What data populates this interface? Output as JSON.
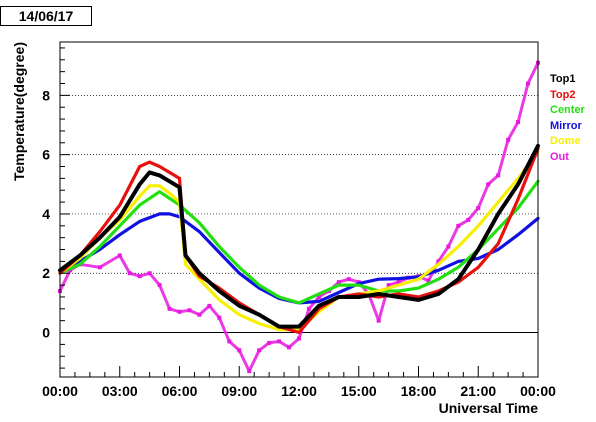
{
  "date": "14/06/17",
  "colors": {
    "Top1": "#000000",
    "Top2": "#e8100c",
    "Center": "#22e010",
    "Mirror": "#1010e0",
    "Dome": "#f8f000",
    "Out": "#e818e0"
  },
  "chart_data": {
    "type": "scatter",
    "xlabel": "Universal Time",
    "ylabel": "Temperature(degree)",
    "x_unit": "hours",
    "xlim": [
      0,
      24
    ],
    "ylim": [
      -1.5,
      9.8
    ],
    "x_ticks": [
      "00:00",
      "03:00",
      "06:00",
      "09:00",
      "12:00",
      "15:00",
      "18:00",
      "21:00",
      "00:00"
    ],
    "y_ticks": [
      0,
      2,
      4,
      6,
      8
    ],
    "grid": "horizontal dotted at 2, 4, 6, 8",
    "legend_position": "right",
    "series": [
      {
        "name": "Top1",
        "x": [
          0,
          1,
          2,
          3,
          4,
          4.5,
          5,
          5.5,
          6,
          6.3,
          7,
          8,
          9,
          10,
          11,
          12,
          13,
          14,
          15,
          16,
          17,
          18,
          19,
          20,
          21,
          22,
          23,
          24
        ],
        "y": [
          2.1,
          2.6,
          3.2,
          3.9,
          5.0,
          5.4,
          5.3,
          5.1,
          4.9,
          2.6,
          2.0,
          1.4,
          0.9,
          0.6,
          0.2,
          0.2,
          0.9,
          1.2,
          1.2,
          1.3,
          1.2,
          1.1,
          1.3,
          1.8,
          2.8,
          4.0,
          5.0,
          6.3
        ]
      },
      {
        "name": "Top2",
        "x": [
          0,
          1,
          2,
          3,
          4,
          4.5,
          5,
          5.5,
          6,
          6.3,
          7,
          8,
          9,
          10,
          11,
          12,
          13,
          14,
          15,
          16,
          17,
          18,
          19,
          20,
          21,
          22,
          23,
          24
        ],
        "y": [
          2.0,
          2.6,
          3.4,
          4.3,
          5.6,
          5.75,
          5.6,
          5.4,
          5.2,
          2.6,
          1.9,
          1.5,
          1.0,
          0.6,
          0.2,
          0.0,
          0.8,
          1.2,
          1.3,
          1.2,
          1.3,
          1.2,
          1.4,
          1.7,
          2.2,
          3.0,
          4.5,
          6.2
        ]
      },
      {
        "name": "Center",
        "x": [
          0,
          1,
          2,
          3,
          4,
          5,
          6,
          7,
          8,
          9,
          10,
          11,
          12,
          13,
          14,
          15,
          16,
          17,
          18,
          19,
          20,
          21,
          22,
          23,
          24
        ],
        "y": [
          2.0,
          2.3,
          2.9,
          3.6,
          4.3,
          4.75,
          4.3,
          3.7,
          2.9,
          2.2,
          1.6,
          1.2,
          1.0,
          1.3,
          1.6,
          1.6,
          1.4,
          1.4,
          1.5,
          1.8,
          2.2,
          2.8,
          3.5,
          4.2,
          5.1
        ]
      },
      {
        "name": "Mirror",
        "x": [
          0,
          1,
          2,
          3,
          4,
          5,
          5.5,
          6,
          7,
          8,
          9,
          10,
          11,
          12,
          13,
          14,
          15,
          16,
          17,
          18,
          19,
          20,
          21,
          22,
          23,
          24
        ],
        "y": [
          2.1,
          2.4,
          2.8,
          3.3,
          3.75,
          4.0,
          4.0,
          3.9,
          3.4,
          2.7,
          2.0,
          1.5,
          1.15,
          1.0,
          1.05,
          1.35,
          1.65,
          1.8,
          1.82,
          1.88,
          2.1,
          2.4,
          2.5,
          2.8,
          3.3,
          3.85
        ]
      },
      {
        "name": "Dome",
        "x": [
          0,
          1,
          2,
          3,
          4,
          4.5,
          5,
          5.5,
          6,
          6.3,
          7,
          8,
          9,
          10,
          11,
          12,
          13,
          14,
          15,
          16,
          17,
          18,
          19,
          20,
          21,
          22,
          23,
          24
        ],
        "y": [
          2.0,
          2.5,
          3.2,
          3.8,
          4.6,
          4.95,
          4.95,
          4.7,
          4.4,
          2.3,
          1.8,
          1.1,
          0.6,
          0.3,
          0.1,
          0.1,
          0.7,
          1.2,
          1.3,
          1.4,
          1.6,
          1.8,
          2.3,
          2.9,
          3.6,
          4.4,
          5.2,
          6.1
        ]
      },
      {
        "name": "Out",
        "x": [
          0,
          0.5,
          1,
          2,
          3,
          3.5,
          4,
          4.5,
          5,
          5.5,
          6,
          6.5,
          7,
          7.5,
          8,
          8.5,
          9,
          9.5,
          10,
          10.5,
          11,
          11.5,
          12,
          12.5,
          13,
          13.5,
          14,
          14.5,
          15,
          15.5,
          16,
          16.5,
          17,
          17.5,
          18,
          18.5,
          19,
          19.5,
          20,
          20.5,
          21,
          21.5,
          22,
          22.5,
          23,
          23.5,
          24
        ],
        "y": [
          1.4,
          2.1,
          2.3,
          2.2,
          2.6,
          2.0,
          1.9,
          2.0,
          1.6,
          0.8,
          0.7,
          0.75,
          0.6,
          0.9,
          0.5,
          -0.3,
          -0.6,
          -1.3,
          -0.6,
          -0.35,
          -0.3,
          -0.5,
          -0.2,
          0.8,
          1.2,
          1.4,
          1.7,
          1.8,
          1.7,
          1.3,
          0.4,
          1.6,
          1.7,
          1.85,
          1.9,
          1.75,
          2.4,
          2.9,
          3.6,
          3.8,
          4.2,
          5.0,
          5.3,
          6.5,
          7.1,
          8.4,
          9.1
        ]
      }
    ]
  }
}
